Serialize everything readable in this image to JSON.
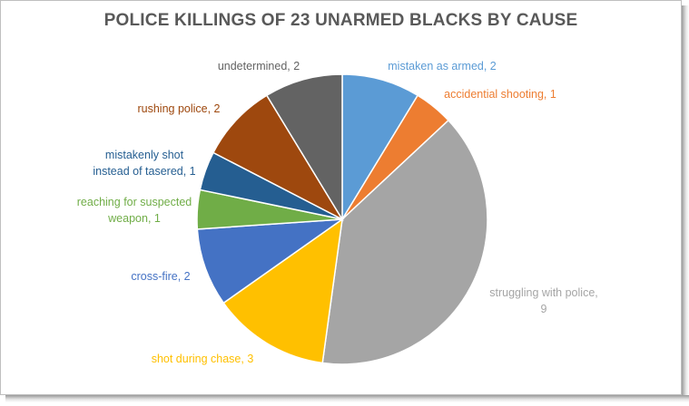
{
  "chart_data": {
    "type": "pie",
    "title": "POLICE KILLINGS OF 23 UNARMED BLACKS BY CAUSE",
    "slices": [
      {
        "label_lines": [
          "mistaken as armed, 2"
        ],
        "value": 2,
        "color": "#5b9bd5"
      },
      {
        "label_lines": [
          "accidential  shooting, 1"
        ],
        "value": 1,
        "color": "#ed7d31"
      },
      {
        "label_lines": [
          "struggling  with police,",
          "9"
        ],
        "value": 9,
        "color": "#a5a5a5"
      },
      {
        "label_lines": [
          "shot during chase, 3"
        ],
        "value": 3,
        "color": "#ffc000"
      },
      {
        "label_lines": [
          "cross-fire, 2"
        ],
        "value": 2,
        "color": "#4472c4"
      },
      {
        "label_lines": [
          "reaching for suspected",
          "weapon, 1"
        ],
        "value": 1,
        "color": "#70ad47"
      },
      {
        "label_lines": [
          "mistakenly shot",
          "instead of tasered, 1"
        ],
        "value": 1,
        "color": "#255e91"
      },
      {
        "label_lines": [
          "rushing police, 2"
        ],
        "value": 2,
        "color": "#9e480e"
      },
      {
        "label_lines": [
          "undetermined, 2"
        ],
        "value": 2,
        "color": "#636363"
      }
    ],
    "legend": "none",
    "data_labels": "outside"
  }
}
